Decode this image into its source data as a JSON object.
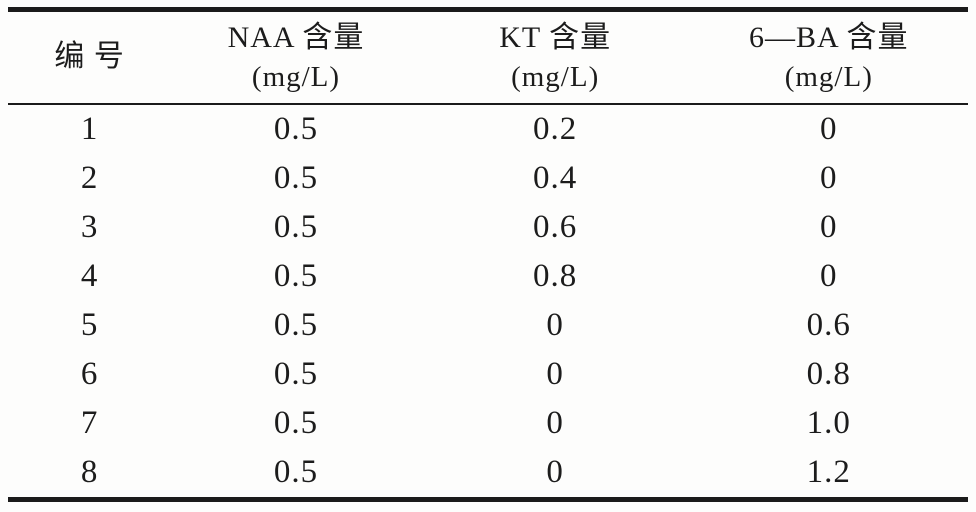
{
  "table": {
    "columns": [
      {
        "id": "no",
        "label": "编 号",
        "unit": ""
      },
      {
        "id": "naa",
        "label": "NAA 含量",
        "unit": "(mg/L)"
      },
      {
        "id": "kt",
        "label": "KT 含量",
        "unit": "(mg/L)"
      },
      {
        "id": "ba",
        "label": "6—BA 含量",
        "unit": "(mg/L)"
      }
    ],
    "rows": [
      [
        "1",
        "0.5",
        "0.2",
        "0"
      ],
      [
        "2",
        "0.5",
        "0.4",
        "0"
      ],
      [
        "3",
        "0.5",
        "0.6",
        "0"
      ],
      [
        "4",
        "0.5",
        "0.8",
        "0"
      ],
      [
        "5",
        "0.5",
        "0",
        "0.6"
      ],
      [
        "6",
        "0.5",
        "0",
        "0.8"
      ],
      [
        "7",
        "0.5",
        "0",
        "1.0"
      ],
      [
        "8",
        "0.5",
        "0",
        "1.2"
      ]
    ]
  },
  "chart_data": {
    "type": "table",
    "title": "",
    "columns": [
      "编号",
      "NAA 含量 (mg/L)",
      "KT 含量 (mg/L)",
      "6—BA 含量 (mg/L)"
    ],
    "rows": [
      [
        1,
        0.5,
        0.2,
        0
      ],
      [
        2,
        0.5,
        0.4,
        0
      ],
      [
        3,
        0.5,
        0.6,
        0
      ],
      [
        4,
        0.5,
        0.8,
        0
      ],
      [
        5,
        0.5,
        0,
        0.6
      ],
      [
        6,
        0.5,
        0,
        0.8
      ],
      [
        7,
        0.5,
        0,
        1.0
      ],
      [
        8,
        0.5,
        0,
        1.2
      ]
    ]
  }
}
